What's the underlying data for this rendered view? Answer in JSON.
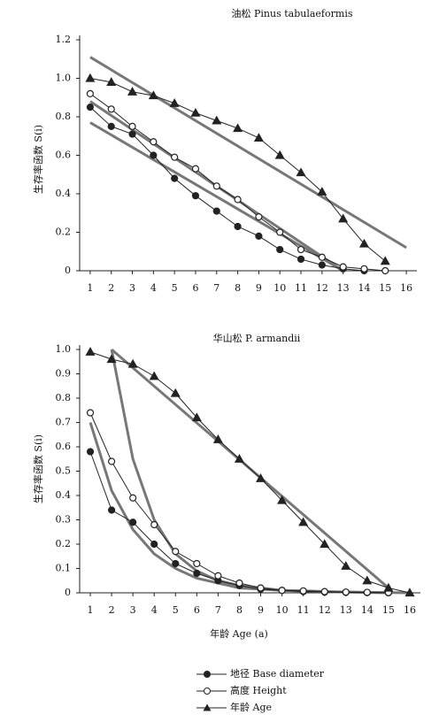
{
  "chart_data": [
    {
      "type": "line",
      "title": "油松 Pinus tabulaeformis",
      "y_label": "生存率函数 S(i)",
      "xlim": [
        0.5,
        16.5
      ],
      "xticks": [
        1,
        2,
        3,
        4,
        5,
        6,
        7,
        8,
        9,
        10,
        11,
        12,
        13,
        14,
        15,
        16
      ],
      "ylim": [
        0,
        1.2
      ],
      "yticks": [
        0,
        0.2,
        0.4,
        0.6,
        0.8,
        {
          "value": 1,
          "label": "1.0"
        },
        1.2
      ],
      "series": [
        {
          "color": "#222",
          "marker": "circle-filled",
          "x": [
            1,
            2,
            3,
            4,
            5,
            6,
            7,
            8,
            9,
            10,
            11,
            12,
            13,
            14
          ],
          "values": [
            0.85,
            0.75,
            0.71,
            0.6,
            0.48,
            0.39,
            0.31,
            0.23,
            0.18,
            0.11,
            0.06,
            0.03,
            0.01,
            0
          ]
        },
        {
          "color": "#222",
          "marker": "circle-open",
          "x": [
            1,
            2,
            3,
            4,
            5,
            6,
            7,
            8,
            9,
            10,
            11,
            12,
            13,
            14,
            15
          ],
          "values": [
            0.92,
            0.84,
            0.75,
            0.67,
            0.59,
            0.53,
            0.44,
            0.37,
            0.28,
            0.2,
            0.11,
            0.07,
            0.02,
            0.01,
            0
          ]
        },
        {
          "color": "#222",
          "marker": "triangle",
          "x": [
            1,
            2,
            3,
            4,
            5,
            6,
            7,
            8,
            9,
            10,
            11,
            12,
            13,
            14,
            15
          ],
          "values": [
            1,
            0.98,
            0.93,
            0.91,
            0.87,
            0.82,
            0.78,
            0.74,
            0.69,
            0.6,
            0.51,
            0.41,
            0.27,
            0.14,
            0.05
          ]
        }
      ],
      "fits": [
        {
          "color": "#777",
          "x": [
            1,
            13
          ],
          "values": [
            0.77,
            0
          ]
        },
        {
          "color": "#777",
          "x": [
            1,
            13
          ],
          "values": [
            0.88,
            0
          ]
        },
        {
          "color": "#777",
          "x": [
            1,
            16
          ],
          "values": [
            1.11,
            0.12
          ]
        }
      ]
    },
    {
      "type": "line",
      "title": "华山松 P. armandii",
      "x_label": "年龄 Age (a)",
      "y_label": "生存率函数 S(i)",
      "xlim": [
        0.5,
        16.5
      ],
      "xticks": [
        1,
        2,
        3,
        4,
        5,
        6,
        7,
        8,
        9,
        10,
        11,
        12,
        13,
        14,
        15,
        16
      ],
      "ylim": [
        0,
        1
      ],
      "yticks": [
        0,
        0.1,
        0.2,
        0.3,
        0.4,
        0.5,
        0.6,
        0.7,
        0.8,
        0.9,
        {
          "value": 1,
          "label": "1.0"
        }
      ],
      "series": [
        {
          "name": "地径 Base diameter",
          "color": "#222",
          "marker": "circle-filled",
          "x": [
            1,
            2,
            3,
            4,
            5,
            6,
            7,
            8,
            9,
            10,
            11,
            12,
            13,
            14,
            15
          ],
          "values": [
            0.58,
            0.34,
            0.29,
            0.2,
            0.12,
            0.08,
            0.05,
            0.03,
            0.015,
            0.01,
            0.005,
            0.003,
            0.002,
            0.001,
            0
          ]
        },
        {
          "name": "高度 Height",
          "color": "#222",
          "marker": "circle-open",
          "x": [
            1,
            2,
            3,
            4,
            5,
            6,
            7,
            8,
            9,
            10,
            11,
            12,
            13,
            14,
            15
          ],
          "values": [
            0.74,
            0.54,
            0.39,
            0.28,
            0.17,
            0.12,
            0.07,
            0.04,
            0.02,
            0.01,
            0.008,
            0.005,
            0.003,
            0.002,
            0.001
          ]
        },
        {
          "name": "年龄 Age",
          "color": "#222",
          "marker": "triangle",
          "x": [
            1,
            2,
            3,
            4,
            5,
            6,
            7,
            8,
            9,
            10,
            11,
            12,
            13,
            14,
            15,
            16
          ],
          "values": [
            0.99,
            0.96,
            0.94,
            0.89,
            0.82,
            0.72,
            0.63,
            0.55,
            0.47,
            0.38,
            0.29,
            0.2,
            0.11,
            0.05,
            0.02,
            0
          ]
        }
      ],
      "fits": [
        {
          "color": "#777",
          "x": [
            1,
            2,
            3,
            4,
            5,
            6,
            7,
            8,
            10,
            13,
            16
          ],
          "values": [
            0.7,
            0.42,
            0.26,
            0.16,
            0.1,
            0.06,
            0.04,
            0.02,
            0.01,
            0.003,
            0
          ]
        },
        {
          "color": "#777",
          "x": [
            2,
            3,
            4,
            5,
            6,
            7,
            8,
            10,
            13,
            15
          ],
          "values": [
            1,
            0.55,
            0.3,
            0.16,
            0.09,
            0.05,
            0.03,
            0.01,
            0.003,
            0
          ]
        },
        {
          "color": "#777",
          "x": [
            2,
            15
          ],
          "values": [
            1,
            0.02
          ]
        }
      ]
    }
  ]
}
